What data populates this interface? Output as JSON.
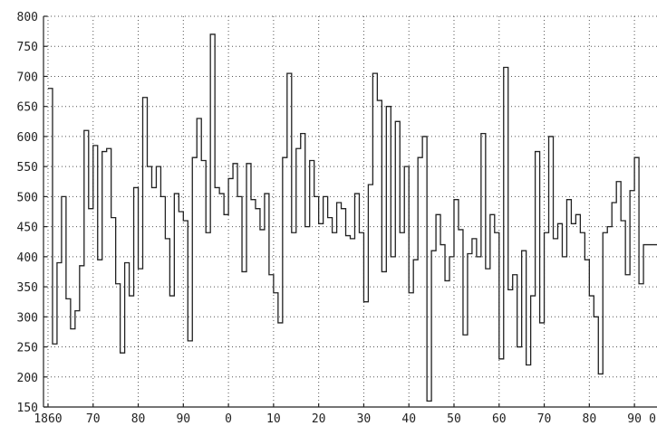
{
  "chart_data": {
    "type": "line",
    "step": true,
    "grid": true,
    "title": "",
    "xlabel": "",
    "ylabel": "",
    "xlim": [
      1859,
      1995
    ],
    "ylim": [
      150,
      800
    ],
    "xticks": [
      {
        "value": 1860,
        "label": "1860"
      },
      {
        "value": 1870,
        "label": "70"
      },
      {
        "value": 1880,
        "label": "80"
      },
      {
        "value": 1890,
        "label": "90"
      },
      {
        "value": 1900,
        "label": "0"
      },
      {
        "value": 1910,
        "label": "10"
      },
      {
        "value": 1920,
        "label": "20"
      },
      {
        "value": 1930,
        "label": "30"
      },
      {
        "value": 1940,
        "label": "40"
      },
      {
        "value": 1950,
        "label": "50"
      },
      {
        "value": 1960,
        "label": "60"
      },
      {
        "value": 1970,
        "label": "70"
      },
      {
        "value": 1980,
        "label": "80"
      },
      {
        "value": 1990,
        "label": "90"
      },
      {
        "value": 2000,
        "label": "0"
      }
    ],
    "yticks": [
      {
        "value": 150,
        "label": "150"
      },
      {
        "value": 200,
        "label": "200"
      },
      {
        "value": 250,
        "label": "250"
      },
      {
        "value": 300,
        "label": "300"
      },
      {
        "value": 350,
        "label": "350"
      },
      {
        "value": 400,
        "label": "400"
      },
      {
        "value": 450,
        "label": "450"
      },
      {
        "value": 500,
        "label": "500"
      },
      {
        "value": 550,
        "label": "550"
      },
      {
        "value": 600,
        "label": "600"
      },
      {
        "value": 650,
        "label": "650"
      },
      {
        "value": 700,
        "label": "700"
      },
      {
        "value": 750,
        "label": "750"
      },
      {
        "value": 800,
        "label": "800"
      }
    ],
    "series": [
      {
        "x": [
          1860,
          1861,
          1862,
          1863,
          1864,
          1865,
          1866,
          1867,
          1868,
          1869,
          1870,
          1871,
          1872,
          1873,
          1874,
          1875,
          1876,
          1877,
          1878,
          1879,
          1880,
          1881,
          1882,
          1883,
          1884,
          1885,
          1886,
          1887,
          1888,
          1889,
          1890,
          1891,
          1892,
          1893,
          1894,
          1895,
          1896,
          1897,
          1898,
          1899,
          1900,
          1901,
          1902,
          1903,
          1904,
          1905,
          1906,
          1907,
          1908,
          1909,
          1910,
          1911,
          1912,
          1913,
          1914,
          1915,
          1916,
          1917,
          1918,
          1919,
          1920,
          1921,
          1922,
          1923,
          1924,
          1925,
          1926,
          1927,
          1928,
          1929,
          1930,
          1931,
          1932,
          1933,
          1934,
          1935,
          1936,
          1937,
          1938,
          1939,
          1940,
          1941,
          1942,
          1943,
          1944,
          1945,
          1946,
          1947,
          1948,
          1949,
          1950,
          1951,
          1952,
          1953,
          1954,
          1955,
          1956,
          1957,
          1958,
          1959,
          1960,
          1961,
          1962,
          1963,
          1964,
          1965,
          1966,
          1967,
          1968,
          1969,
          1970,
          1971,
          1972,
          1973,
          1974,
          1975,
          1976,
          1977,
          1978,
          1979,
          1980,
          1981,
          1982,
          1983,
          1984,
          1985,
          1986,
          1987,
          1988,
          1989,
          1990,
          1991,
          1992,
          1993,
          1994
        ],
        "values": [
          680,
          255,
          390,
          500,
          330,
          280,
          310,
          385,
          610,
          480,
          585,
          395,
          575,
          580,
          465,
          355,
          240,
          390,
          335,
          515,
          380,
          665,
          550,
          515,
          550,
          500,
          430,
          335,
          505,
          475,
          460,
          260,
          565,
          630,
          560,
          440,
          770,
          515,
          505,
          470,
          530,
          555,
          500,
          375,
          555,
          495,
          480,
          445,
          505,
          370,
          340,
          290,
          565,
          705,
          440,
          580,
          605,
          450,
          560,
          500,
          455,
          500,
          465,
          440,
          490,
          480,
          435,
          430,
          505,
          440,
          325,
          520,
          705,
          660,
          375,
          650,
          400,
          625,
          440,
          550,
          340,
          395,
          565,
          600,
          160,
          410,
          470,
          420,
          360,
          400,
          495,
          445,
          270,
          405,
          430,
          400,
          605,
          380,
          470,
          440,
          230,
          715,
          345,
          370,
          250,
          410,
          220,
          335,
          575,
          290,
          440,
          600,
          430,
          455,
          400,
          495,
          455,
          470,
          440,
          395,
          335,
          300,
          205,
          440,
          450,
          490,
          525,
          460,
          370,
          510,
          565,
          355,
          420,
          420,
          420
        ]
      }
    ]
  }
}
